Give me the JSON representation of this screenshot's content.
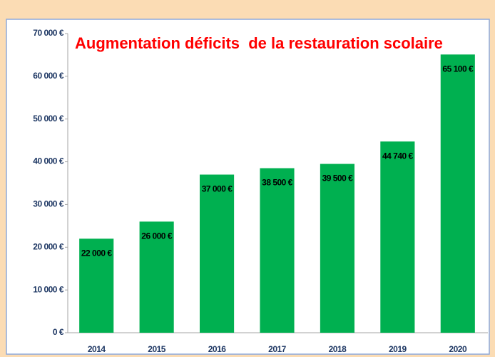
{
  "chart_data": {
    "type": "bar",
    "title": "Augmentation déficits  de la restauration scolaire",
    "categories": [
      "2014",
      "2015",
      "2016",
      "2017",
      "2018",
      "2019",
      "2020"
    ],
    "values": [
      22000,
      26000,
      37000,
      38500,
      39500,
      44740,
      65100
    ],
    "value_labels": [
      "22 000 €",
      "26 000 €",
      "37 000 €",
      "38 500 €",
      "39 500 €",
      "44 740 €",
      "65 100 €"
    ],
    "color": "#00b050",
    "ylim": [
      0,
      70000
    ],
    "yticks": [
      {
        "value": 0,
        "label": "0 €"
      },
      {
        "value": 10000,
        "label": "10 000 €"
      },
      {
        "value": 20000,
        "label": "20 000 €"
      },
      {
        "value": 30000,
        "label": "30 000 €"
      },
      {
        "value": 40000,
        "label": "40 000 €"
      },
      {
        "value": 50000,
        "label": "50 000 €"
      },
      {
        "value": 60000,
        "label": "60 000 €"
      },
      {
        "value": 70000,
        "label": "70 000 €"
      }
    ],
    "grid": false
  }
}
